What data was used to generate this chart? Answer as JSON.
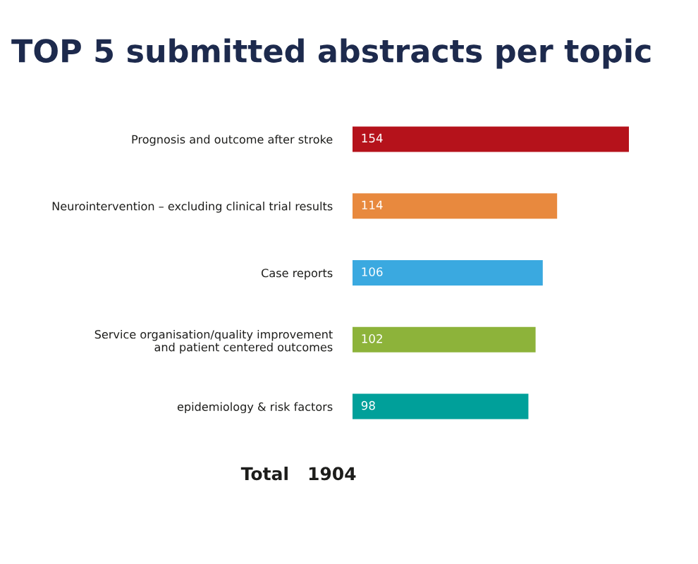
{
  "chart_data": {
    "type": "bar",
    "orientation": "horizontal",
    "title": "TOP 5 submitted abstracts per topic",
    "categories": [
      "Prognosis and outcome after stroke",
      "Neurointervention – excluding clinical trial results",
      "Case reports",
      "Service organisation/quality improvement\nand patient centered outcomes",
      "epidemiology & risk factors"
    ],
    "values": [
      154,
      114,
      106,
      102,
      98
    ],
    "colors": [
      "#b5121b",
      "#e8893e",
      "#3aa9e0",
      "#8db33a",
      "#00a09a"
    ],
    "data_labels": true,
    "annotations": [
      "Total",
      "1904"
    ]
  }
}
